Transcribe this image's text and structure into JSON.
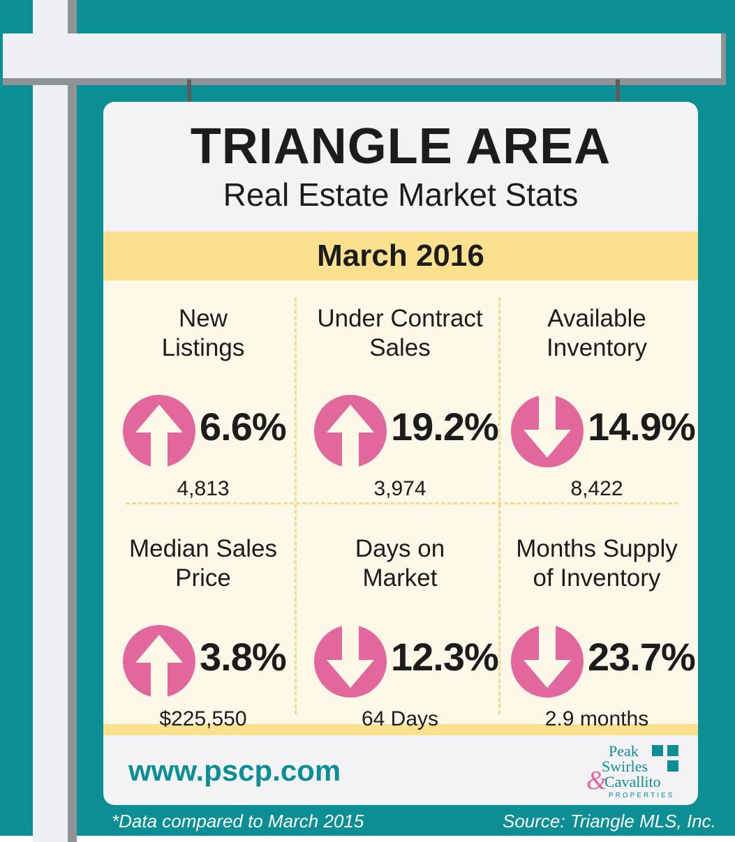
{
  "title": "TRIANGLE AREA",
  "subtitle": "Real Estate Market Stats",
  "month": "March 2016",
  "stats": [
    {
      "label_line1": "New",
      "label_line2": "Listings",
      "direction": "up",
      "change": "6.6%",
      "value": "4,813"
    },
    {
      "label_line1": "Under Contract",
      "label_line2": "Sales",
      "direction": "up",
      "change": "19.2%",
      "value": "3,974"
    },
    {
      "label_line1": "Available",
      "label_line2": "Inventory",
      "direction": "down",
      "change": "14.9%",
      "value": "8,422"
    },
    {
      "label_line1": "Median Sales",
      "label_line2": "Price",
      "direction": "up",
      "change": "3.8%",
      "value": "$225,550"
    },
    {
      "label_line1": "Days on",
      "label_line2": "Market",
      "direction": "down",
      "change": "12.3%",
      "value": "64 Days"
    },
    {
      "label_line1": "Months Supply",
      "label_line2": "of Inventory",
      "direction": "down",
      "change": "23.7%",
      "value": "2.9 months"
    }
  ],
  "website": "www.pscp.com",
  "logo": {
    "line1": "Peak",
    "line2": "Swirles",
    "amp": "&",
    "line3": "Cavallito",
    "line4": "PROPERTIES"
  },
  "footnote_left": "*Data compared to March 2015",
  "footnote_right": "Source: Triangle MLS, Inc.",
  "colors": {
    "teal": "#0b8e94",
    "yellow": "#fbe08d",
    "pink": "#e2679c",
    "sign": "#f3f3f5"
  },
  "icons": {
    "up": "arrow-up-circle-icon",
    "down": "arrow-down-circle-icon"
  }
}
